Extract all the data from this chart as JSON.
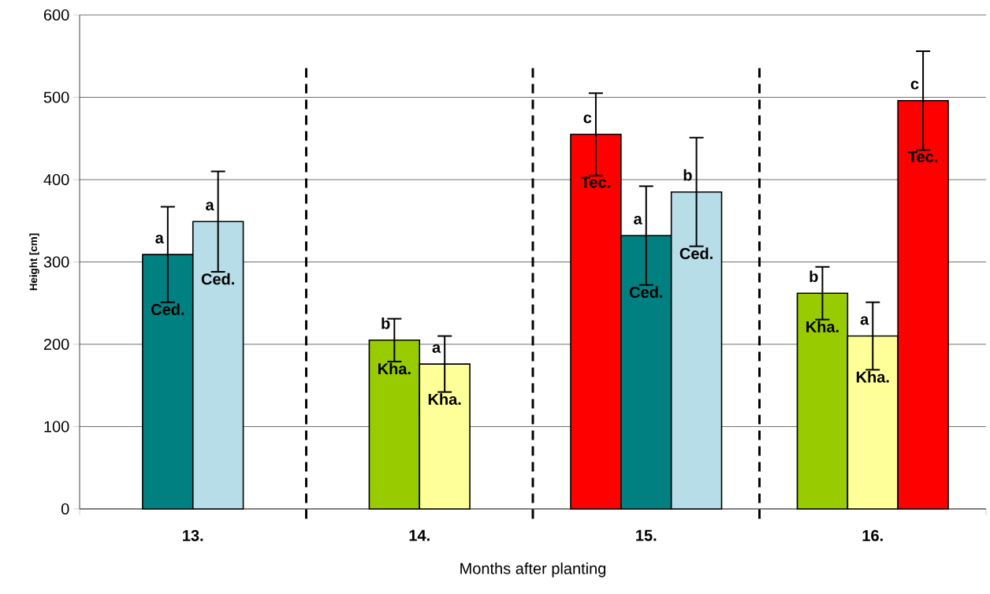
{
  "chart_data": {
    "type": "bar",
    "xlabel": "Months after planting",
    "ylabel": "Height [cm]",
    "categories": [
      "13.",
      "14.",
      "15.",
      "16."
    ],
    "series": [
      {
        "name": "Tec.",
        "color": "#ff0000",
        "values": [
          null,
          null,
          455,
          null
        ],
        "errors": [
          null,
          null,
          50,
          null
        ],
        "value_labels": [
          null,
          null,
          "c",
          null
        ]
      },
      {
        "name": "Ced.",
        "color": "#008080",
        "values": [
          309,
          null,
          332,
          null
        ],
        "errors": [
          58,
          null,
          60,
          null
        ],
        "value_labels": [
          "a",
          null,
          "a",
          null
        ]
      },
      {
        "name": "Ced.",
        "color": "#b7dde8",
        "values": [
          349,
          null,
          385,
          null
        ],
        "errors": [
          61,
          null,
          66,
          null
        ],
        "value_labels": [
          "a",
          null,
          "b",
          null
        ]
      },
      {
        "name": "Kha.",
        "color": "#99cc00",
        "values": [
          null,
          205,
          null,
          262
        ],
        "errors": [
          null,
          26,
          null,
          32
        ],
        "value_labels": [
          null,
          "b",
          null,
          "b"
        ]
      },
      {
        "name": "Kha.",
        "color": "#ffff99",
        "values": [
          null,
          176,
          null,
          210
        ],
        "errors": [
          null,
          34,
          null,
          41
        ],
        "value_labels": [
          null,
          "a",
          null,
          "a"
        ]
      },
      {
        "name": "Tec.",
        "color": "#ff0000",
        "values": [
          null,
          null,
          null,
          496
        ],
        "errors": [
          null,
          null,
          null,
          60
        ],
        "value_labels": [
          null,
          null,
          null,
          "c"
        ]
      }
    ],
    "ylim": [
      0,
      600
    ],
    "yticks": [
      0,
      100,
      200,
      300,
      400,
      500,
      600
    ],
    "grid": "y"
  }
}
